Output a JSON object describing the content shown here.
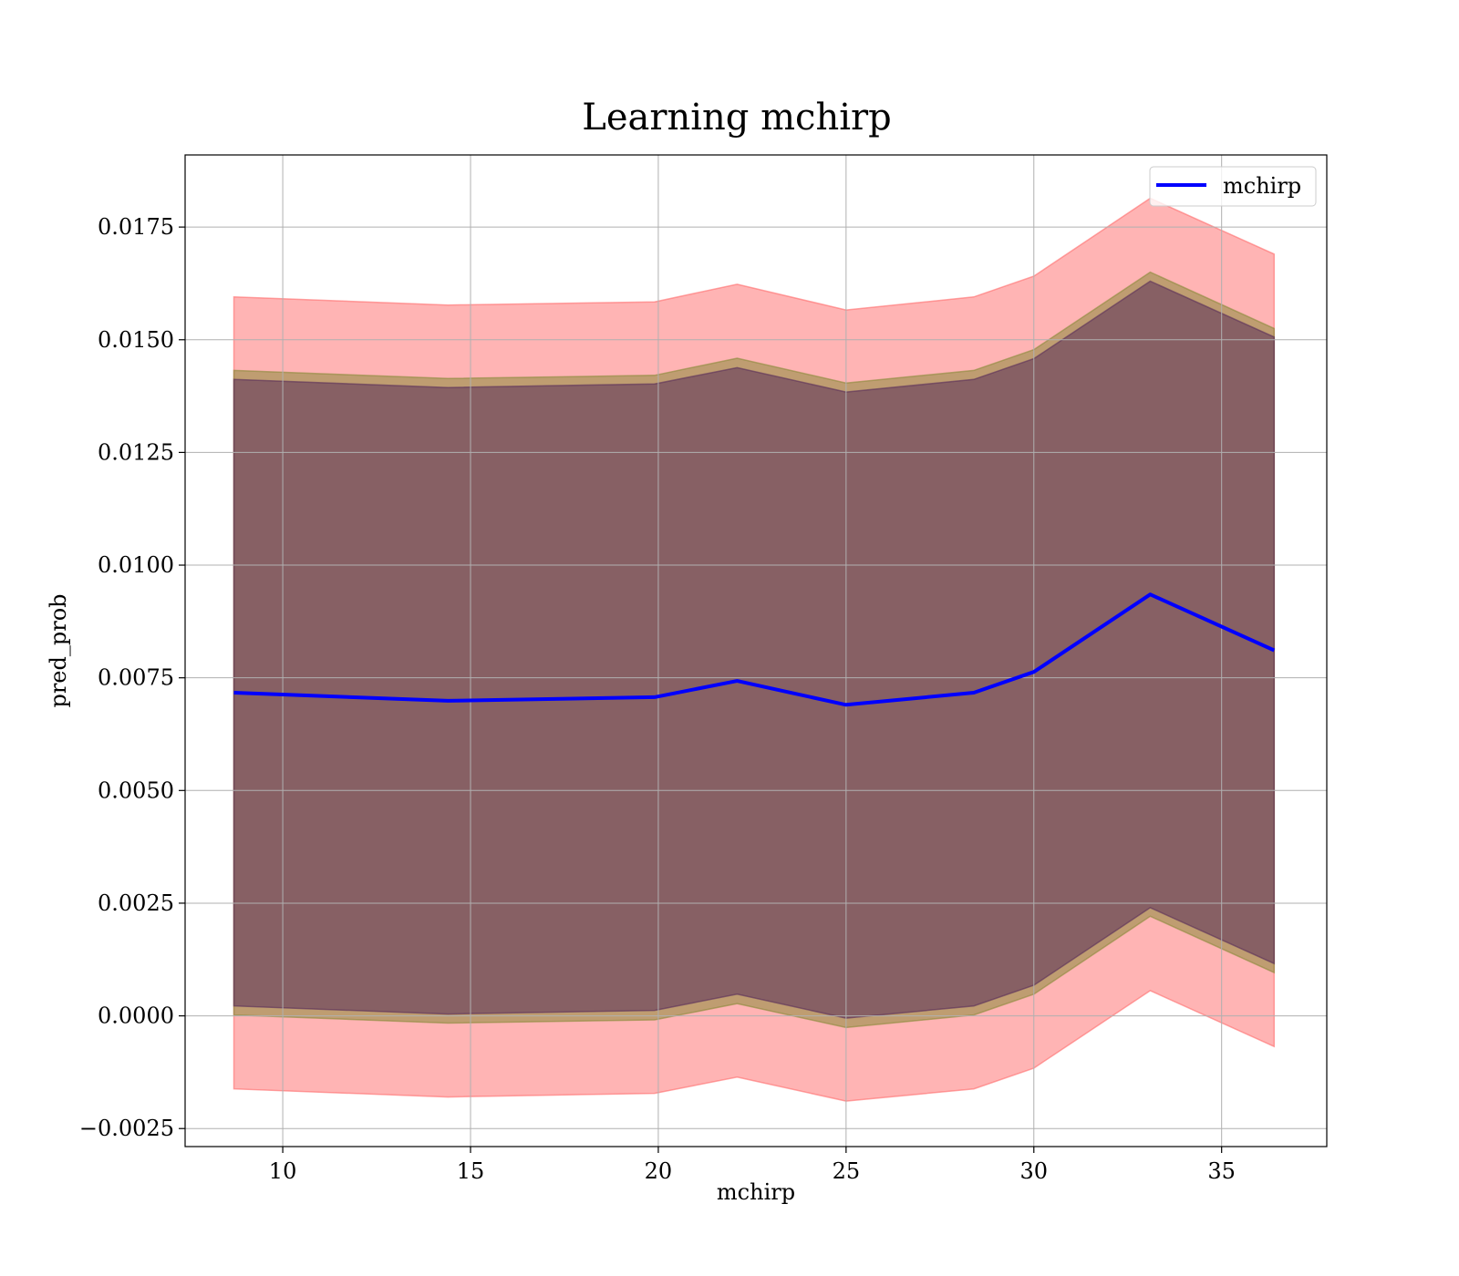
{
  "chart_data": {
    "type": "line",
    "title": "Learning mchirp",
    "xlabel": "mchirp",
    "ylabel": "pred_prob",
    "xlim": [
      7.4,
      37.8
    ],
    "ylim": [
      -0.0029,
      0.0191
    ],
    "grid": true,
    "legend_position": "top-right",
    "xticks": [
      10,
      15,
      20,
      25,
      30,
      35
    ],
    "yticks": [
      -0.0025,
      0.0,
      0.0025,
      0.005,
      0.0075,
      0.01,
      0.0125,
      0.015,
      0.0175
    ],
    "ytick_labels": [
      "−0.0025",
      "0.0000",
      "0.0025",
      "0.0050",
      "0.0075",
      "0.0100",
      "0.0125",
      "0.0150",
      "0.0175"
    ],
    "xtick_labels": [
      "10",
      "15",
      "20",
      "25",
      "30",
      "35"
    ],
    "x": [
      8.7,
      14.4,
      19.9,
      22.1,
      25.0,
      28.4,
      30.0,
      33.1,
      36.4
    ],
    "series": [
      {
        "name": "mchirp",
        "color": "#0000ff",
        "values": [
          0.00717,
          0.00699,
          0.00707,
          0.00743,
          0.0069,
          0.00717,
          0.00763,
          0.00935,
          0.00811
        ]
      }
    ],
    "bands": [
      {
        "color": "#ff6a6a",
        "opacity": 0.5,
        "upper": [
          0.01595,
          0.01577,
          0.01584,
          0.01623,
          0.01566,
          0.01595,
          0.01641,
          0.01814,
          0.0169
        ],
        "lower": [
          -0.00162,
          -0.0018,
          -0.00172,
          -0.00136,
          -0.00189,
          -0.00162,
          -0.00116,
          0.00056,
          -0.00068
        ]
      },
      {
        "color": "#8a8a3a",
        "opacity": 0.55,
        "upper": [
          0.01432,
          0.01414,
          0.01421,
          0.01459,
          0.01404,
          0.01432,
          0.01478,
          0.0165,
          0.01525
        ],
        "lower": [
          2e-05,
          -0.00016,
          -9e-05,
          0.00027,
          -0.00026,
          2e-05,
          0.00048,
          0.00221,
          0.00096
        ]
      },
      {
        "color": "#5a2e5a",
        "opacity": 0.55,
        "upper": [
          0.01412,
          0.01394,
          0.01402,
          0.01438,
          0.01384,
          0.01412,
          0.01458,
          0.0163,
          0.01506
        ],
        "lower": [
          0.00022,
          4e-05,
          0.00012,
          0.00048,
          -5e-05,
          0.00022,
          0.00068,
          0.0024,
          0.00116
        ]
      }
    ]
  }
}
